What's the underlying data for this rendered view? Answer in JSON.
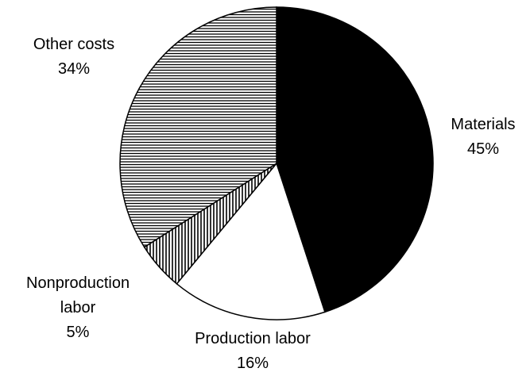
{
  "chart_data": {
    "type": "pie",
    "categories": [
      "Materials",
      "Production labor",
      "Nonproduction labor",
      "Other costs"
    ],
    "values": [
      45,
      16,
      5,
      34
    ],
    "value_labels": [
      "45%",
      "16%",
      "5%",
      "34%"
    ],
    "fills": [
      "solid-black",
      "solid-white",
      "vertical-lines",
      "horizontal-lines"
    ],
    "start_angle": 0,
    "direction": "clockwise"
  }
}
